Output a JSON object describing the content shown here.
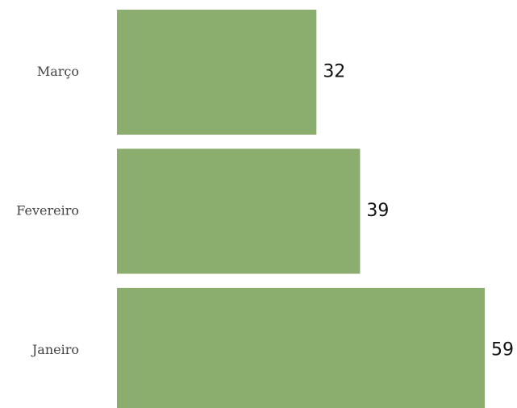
{
  "chart_data": {
    "type": "bar",
    "orientation": "horizontal",
    "categories": [
      "Março",
      "Fevereiro",
      "Janeiro"
    ],
    "values": [
      32,
      39,
      59
    ],
    "title": "",
    "xlabel": "",
    "ylabel": "",
    "xlim": [
      0,
      59
    ],
    "grid": false,
    "legend": "none",
    "bar_color": "#8BAE6E",
    "data_labels": [
      "32",
      "39",
      "59"
    ]
  }
}
